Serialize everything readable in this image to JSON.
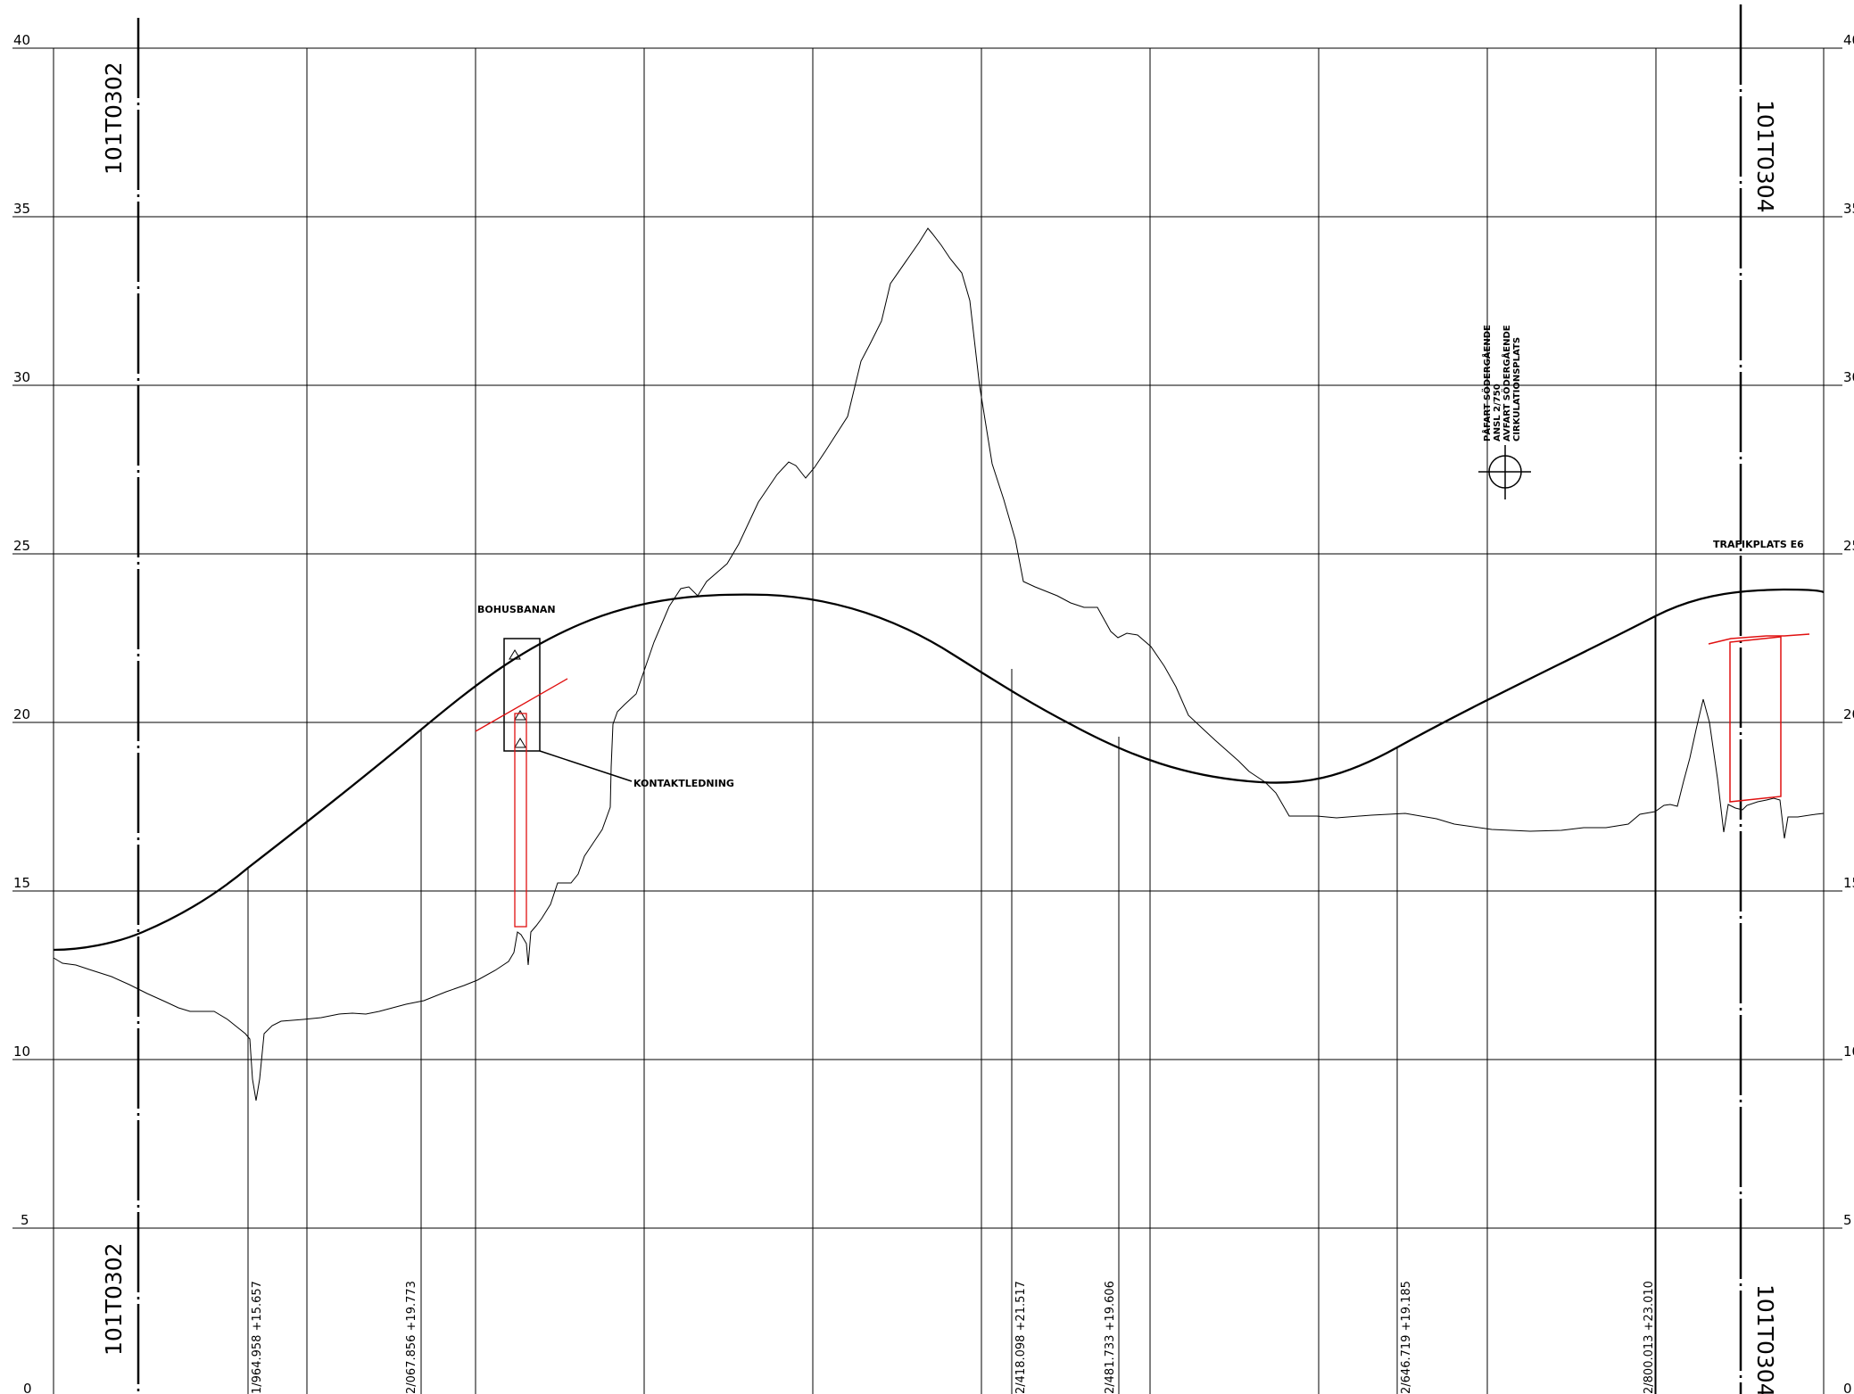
{
  "profile": {
    "elevation_labels": [
      "40",
      "35",
      "30",
      "25",
      "20",
      "15",
      "10",
      "5",
      "0"
    ],
    "sheet_refs": {
      "left_top": "101T0302",
      "left_bottom": "101T0302",
      "right_top": "101T0304",
      "right_bottom": "101T0304"
    },
    "chainage_labels": [
      {
        "text": "1/964.958   +15.657"
      },
      {
        "text": "2/067.856   +19.773"
      },
      {
        "text": "2/418.098   +21.517"
      },
      {
        "text": "2/481.733   +19.606"
      },
      {
        "text": "2/646.719   +19.185"
      },
      {
        "text": "2/800.013   +23.010"
      }
    ],
    "annotations": {
      "bohusbanan": "BOHUSBANAN",
      "kontaktledning": "KONTAKTLEDNING",
      "trafikplats": "TRAFIKPLATS E6",
      "pafart_1": "PÅFART SÖDERGÅENDE",
      "pafart_2": "ANSL 2/750",
      "pafart_3": "AVFART SÖDERGÅENDE",
      "pafart_4": "CIRKULATIONSPLATS"
    },
    "colors": {
      "line": "#000000",
      "red": "#e01010",
      "background": "#ffffff"
    }
  }
}
